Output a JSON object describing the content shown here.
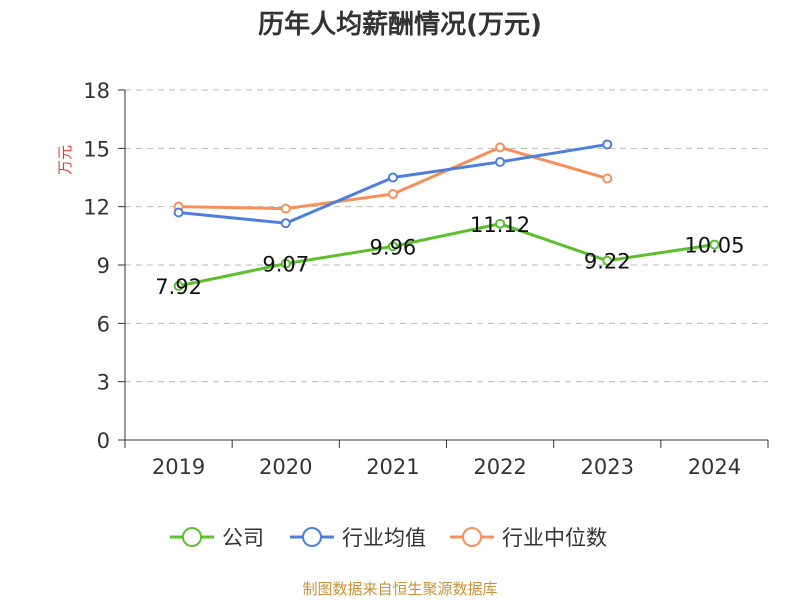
{
  "chart_data": {
    "type": "line",
    "title": "历年人均薪酬情况(万元)",
    "ylabel": "万元",
    "xlabel": "",
    "categories": [
      "2019",
      "2020",
      "2021",
      "2022",
      "2023",
      "2024"
    ],
    "ylim": [
      0,
      18
    ],
    "yticks": [
      0,
      3,
      6,
      9,
      12,
      15,
      18
    ],
    "grid": true,
    "legend_position": "bottom",
    "series": [
      {
        "name": "公司",
        "color": "#5cc02e",
        "show_labels": true,
        "values": [
          7.92,
          9.07,
          9.96,
          11.12,
          9.22,
          10.05
        ]
      },
      {
        "name": "行业均值",
        "color": "#4e7fdb",
        "show_labels": false,
        "values": [
          11.7,
          11.15,
          13.5,
          14.3,
          15.2,
          null
        ]
      },
      {
        "name": "行业中位数",
        "color": "#f5905a",
        "show_labels": false,
        "values": [
          12.0,
          11.9,
          12.65,
          15.05,
          13.45,
          null
        ]
      }
    ],
    "value_labels": [
      "7.92",
      "9.07",
      "9.96",
      "11.12",
      "9.22",
      "10.05"
    ]
  },
  "footer": {
    "source": "制图数据来自恒生聚源数据库"
  },
  "colors": {
    "axis": "#333333",
    "grid": "#bbbbbb",
    "ylabel": "#e03c3c"
  }
}
